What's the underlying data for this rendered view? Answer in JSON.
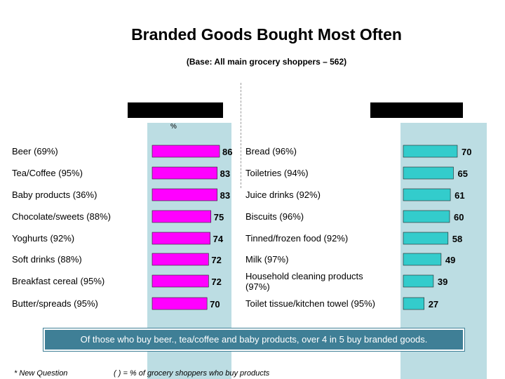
{
  "title": "Branded Goods Bought Most Often",
  "subtitle": "(Base: All main grocery shoppers – 562)",
  "percent_label": "%",
  "footer_text": "Of those who buy beer., tea/coffee and baby products, over 4 in 5 buy branded goods.",
  "note_left": "* New Question",
  "note_right": "( ) = % of grocery shoppers who buy products",
  "colors": {
    "left_bar": "#ff00ff",
    "right_bar": "#33cccc",
    "column_bg": "#bcdde3",
    "footer_bg": "#3f7f96"
  },
  "chart_data": [
    {
      "type": "bar",
      "orientation": "horizontal",
      "categories": [
        "Beer (69%)",
        "Tea/Coffee (95%)",
        "Baby products (36%)",
        "Chocolate/sweets (88%)",
        "Yoghurts (92%)",
        "Soft drinks (88%)",
        "Breakfast cereal (95%)",
        "Butter/spreads (95%)"
      ],
      "values": [
        86,
        83,
        83,
        75,
        74,
        72,
        72,
        70
      ],
      "bar_direction": "right-to-left",
      "color": "#ff00ff"
    },
    {
      "type": "bar",
      "orientation": "horizontal",
      "categories": [
        "Bread (96%)",
        "Toiletries (94%)",
        "Juice drinks (92%)",
        "Biscuits (96%)",
        "Tinned/frozen food (92%)",
        "Milk (97%)",
        "Household cleaning products (97%)",
        "Toilet tissue/kitchen towel (95%)"
      ],
      "values": [
        70,
        65,
        61,
        60,
        58,
        49,
        39,
        27
      ],
      "bar_direction": "right-to-left",
      "color": "#33cccc"
    }
  ]
}
